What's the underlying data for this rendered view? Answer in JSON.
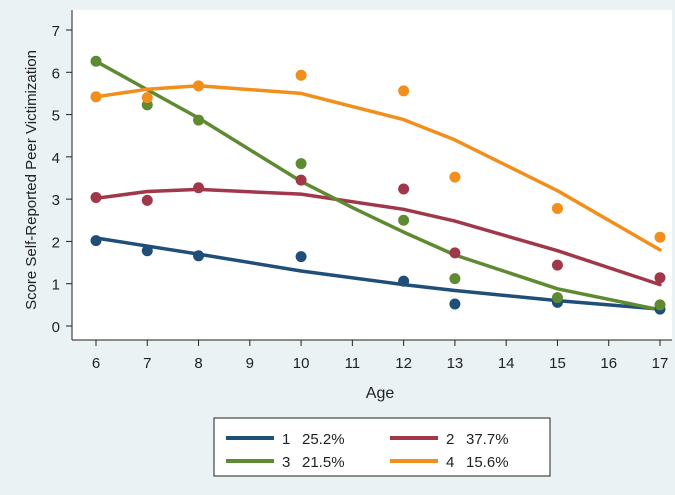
{
  "chart_data": {
    "type": "line",
    "xlabel": "Age",
    "ylabel": "Score Self-Reported Peer Victimization",
    "xlim": [
      6,
      17
    ],
    "ylim": [
      0,
      7
    ],
    "x_ticks": [
      "6",
      "7",
      "8",
      "9",
      "10",
      "11",
      "12",
      "13",
      "14",
      "15",
      "16",
      "17"
    ],
    "y_ticks": [
      "0",
      "1",
      "2",
      "3",
      "4",
      "5",
      "6",
      "7"
    ],
    "grid": false,
    "legend_position": "bottom",
    "series": [
      {
        "name": "1",
        "share": "25.2%",
        "color": "#1f4e79",
        "points": [
          [
            6,
            2.02
          ],
          [
            7,
            1.78
          ],
          [
            8,
            1.66
          ],
          [
            10,
            1.64
          ],
          [
            12,
            1.06
          ],
          [
            13,
            0.52
          ],
          [
            15,
            0.56
          ],
          [
            17,
            0.4
          ]
        ],
        "fitted": [
          [
            6,
            2.08
          ],
          [
            8,
            1.7
          ],
          [
            10,
            1.3
          ],
          [
            12,
            0.98
          ],
          [
            13,
            0.84
          ],
          [
            15,
            0.6
          ],
          [
            17,
            0.4
          ]
        ]
      },
      {
        "name": "2",
        "share": "37.7%",
        "color": "#a0384a",
        "points": [
          [
            6,
            3.04
          ],
          [
            7,
            2.97
          ],
          [
            8,
            3.27
          ],
          [
            10,
            3.45
          ],
          [
            12,
            3.24
          ],
          [
            13,
            1.73
          ],
          [
            15,
            1.44
          ],
          [
            17,
            1.14
          ]
        ],
        "fitted": [
          [
            6,
            3.02
          ],
          [
            7,
            3.18
          ],
          [
            8,
            3.23
          ],
          [
            10,
            3.12
          ],
          [
            12,
            2.76
          ],
          [
            13,
            2.48
          ],
          [
            15,
            1.78
          ],
          [
            17,
            0.98
          ]
        ]
      },
      {
        "name": "3",
        "share": "21.5%",
        "color": "#5e8a32",
        "points": [
          [
            6,
            6.26
          ],
          [
            7,
            5.23
          ],
          [
            8,
            4.87
          ],
          [
            10,
            3.84
          ],
          [
            12,
            2.5
          ],
          [
            13,
            1.12
          ],
          [
            15,
            0.67
          ],
          [
            17,
            0.5
          ]
        ],
        "fitted": [
          [
            6,
            6.26
          ],
          [
            8,
            4.92
          ],
          [
            10,
            3.42
          ],
          [
            11,
            2.8
          ],
          [
            12,
            2.22
          ],
          [
            13,
            1.68
          ],
          [
            15,
            0.88
          ],
          [
            17,
            0.38
          ]
        ]
      },
      {
        "name": "4",
        "share": "15.6%",
        "color": "#f28e1c",
        "points": [
          [
            6,
            5.42
          ],
          [
            7,
            5.4
          ],
          [
            8,
            5.68
          ],
          [
            10,
            5.93
          ],
          [
            12,
            5.56
          ],
          [
            13,
            3.52
          ],
          [
            15,
            2.78
          ],
          [
            17,
            2.1
          ]
        ],
        "fitted": [
          [
            6,
            5.42
          ],
          [
            7,
            5.6
          ],
          [
            8,
            5.68
          ],
          [
            10,
            5.5
          ],
          [
            12,
            4.88
          ],
          [
            13,
            4.4
          ],
          [
            15,
            3.2
          ],
          [
            17,
            1.8
          ]
        ]
      }
    ]
  }
}
